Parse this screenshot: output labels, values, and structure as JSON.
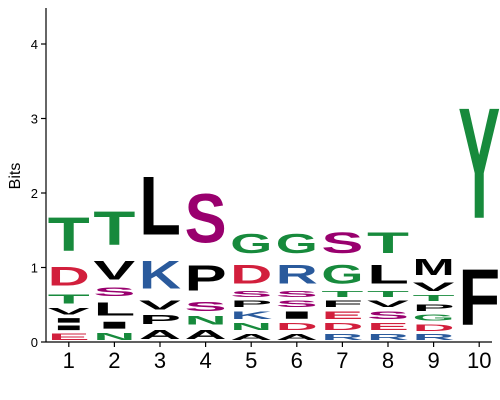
{
  "chart_data": {
    "type": "sequence-logo",
    "ylabel": "Bits",
    "xlabel": "",
    "title": "",
    "ylim": [
      0,
      4.4
    ],
    "yticks": [
      "0",
      "1",
      "2",
      "3",
      "4"
    ],
    "positions": [
      "1",
      "2",
      "3",
      "4",
      "5",
      "6",
      "7",
      "8",
      "9",
      "10"
    ],
    "colors": {
      "A": "#000000",
      "C": "#178a3c",
      "D": "#d21f3c",
      "E": "#d21f3c",
      "F": "#000000",
      "G": "#178a3c",
      "H": "#2a5a9c",
      "I": "#000000",
      "K": "#2a5a9c",
      "L": "#000000",
      "M": "#000000",
      "N": "#178a3c",
      "P": "#000000",
      "Q": "#178a3c",
      "R": "#2a5a9c",
      "S": "#99006e",
      "T": "#178a3c",
      "V": "#000000",
      "W": "#000000",
      "Y": "#178a3c"
    },
    "stacks": [
      [
        {
          "letter": "E",
          "bits": 0.14
        },
        {
          "letter": "I",
          "bits": 0.1
        },
        {
          "letter": "I",
          "bits": 0.1
        },
        {
          "letter": "V",
          "bits": 0.14
        },
        {
          "letter": "T",
          "bits": 0.2
        },
        {
          "letter": "D",
          "bits": 0.4
        },
        {
          "letter": "T",
          "bits": 0.72
        }
      ],
      [
        {
          "letter": "N",
          "bits": 0.15
        },
        {
          "letter": "I",
          "bits": 0.15
        },
        {
          "letter": "L",
          "bits": 0.28
        },
        {
          "letter": "S",
          "bits": 0.18
        },
        {
          "letter": "V",
          "bits": 0.4
        },
        {
          "letter": "T",
          "bits": 0.72
        }
      ],
      [
        {
          "letter": "A",
          "bits": 0.2
        },
        {
          "letter": "P",
          "bits": 0.2
        },
        {
          "letter": "V",
          "bits": 0.2
        },
        {
          "letter": "K",
          "bits": 0.6
        },
        {
          "letter": "L",
          "bits": 1.25
        }
      ],
      [
        {
          "letter": "A",
          "bits": 0.2
        },
        {
          "letter": "N",
          "bits": 0.18
        },
        {
          "letter": "S",
          "bits": 0.2
        },
        {
          "letter": "P",
          "bits": 0.55
        },
        {
          "letter": "S",
          "bits": 1.05
        }
      ],
      [
        {
          "letter": "A",
          "bits": 0.13
        },
        {
          "letter": "N",
          "bits": 0.15
        },
        {
          "letter": "K",
          "bits": 0.16
        },
        {
          "letter": "P",
          "bits": 0.14
        },
        {
          "letter": "S",
          "bits": 0.13
        },
        {
          "letter": "D",
          "bits": 0.4
        },
        {
          "letter": "G",
          "bits": 0.42
        }
      ],
      [
        {
          "letter": "A",
          "bits": 0.13
        },
        {
          "letter": "D",
          "bits": 0.15
        },
        {
          "letter": "I",
          "bits": 0.16
        },
        {
          "letter": "S",
          "bits": 0.14
        },
        {
          "letter": "S",
          "bits": 0.13
        },
        {
          "letter": "R",
          "bits": 0.4
        },
        {
          "letter": "G",
          "bits": 0.42
        }
      ],
      [
        {
          "letter": "R",
          "bits": 0.13
        },
        {
          "letter": "D",
          "bits": 0.15
        },
        {
          "letter": "E",
          "bits": 0.16
        },
        {
          "letter": "F",
          "bits": 0.14
        },
        {
          "letter": "T",
          "bits": 0.13
        },
        {
          "letter": "G",
          "bits": 0.4
        },
        {
          "letter": "S",
          "bits": 0.44
        }
      ],
      [
        {
          "letter": "R",
          "bits": 0.13
        },
        {
          "letter": "E",
          "bits": 0.15
        },
        {
          "letter": "S",
          "bits": 0.16
        },
        {
          "letter": "V",
          "bits": 0.14
        },
        {
          "letter": "T",
          "bits": 0.13
        },
        {
          "letter": "L",
          "bits": 0.4
        },
        {
          "letter": "T",
          "bits": 0.44
        }
      ],
      [
        {
          "letter": "R",
          "bits": 0.12
        },
        {
          "letter": "D",
          "bits": 0.14
        },
        {
          "letter": "G",
          "bits": 0.13
        },
        {
          "letter": "P",
          "bits": 0.14
        },
        {
          "letter": "T",
          "bits": 0.12
        },
        {
          "letter": "V",
          "bits": 0.18
        },
        {
          "letter": "M",
          "bits": 0.35
        }
      ],
      [
        {
          "letter": "F",
          "bits": 1.2
        },
        {
          "letter": "Y",
          "bits": 2.38
        }
      ]
    ]
  }
}
